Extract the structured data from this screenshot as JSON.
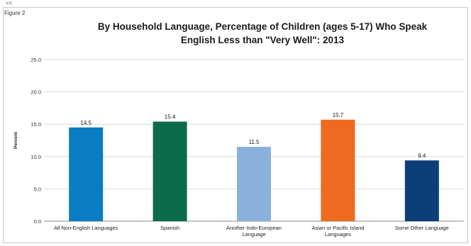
{
  "corner_mark": "<<",
  "figure_label": "Figure 2",
  "chart_data": {
    "type": "bar",
    "title_line1": "By Household Language, Percentage of Children (ages 5-17) Who Speak",
    "title_line2": "English Less than \"Very Well\": 2013",
    "ylabel": "Percent",
    "xlabel": "",
    "ylim": [
      0,
      25
    ],
    "yticks": [
      "0.0",
      "5.0",
      "10.0",
      "15.0",
      "20.0",
      "25.0"
    ],
    "grid": true,
    "categories": [
      [
        "All Non-English Languages"
      ],
      [
        "Spanish"
      ],
      [
        "Another Indo-European",
        "Language"
      ],
      [
        "Asian or Pacific Island",
        "Languages"
      ],
      [
        "Some Other Language"
      ]
    ],
    "values": [
      14.5,
      15.4,
      11.5,
      15.7,
      9.4
    ],
    "value_labels": [
      "14.5",
      "15.4",
      "11.5",
      "15.7",
      "9.4"
    ],
    "colors": [
      "#0a7cc1",
      "#0b6b4a",
      "#8ab1dc",
      "#ef6a21",
      "#0c3f78"
    ]
  }
}
